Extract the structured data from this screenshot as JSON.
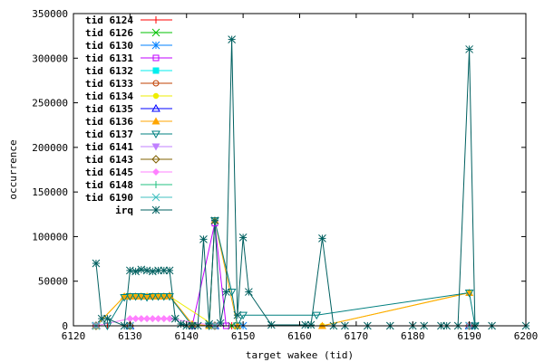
{
  "chart_data": {
    "type": "line",
    "title": "",
    "xlabel": "target wakee (tid)",
    "ylabel": "occurrence",
    "xlim": [
      6120,
      6200
    ],
    "ylim": [
      0,
      350000
    ],
    "x_ticks": [
      "6120",
      "6130",
      "6140",
      "6150",
      "6160",
      "6170",
      "6180",
      "6190",
      "6200"
    ],
    "y_ticks": [
      "0",
      "50000",
      "100000",
      "150000",
      "200000",
      "250000",
      "300000",
      "350000"
    ],
    "grid": false,
    "legend_position": "top-left",
    "series": [
      {
        "name": "tid 6124",
        "color": "#ff0000",
        "marker": "plus",
        "x": [
          6124,
          6126,
          6130,
          6141,
          6145,
          6148,
          6190
        ],
        "y": [
          0,
          0,
          0,
          0,
          0,
          0,
          0
        ]
      },
      {
        "name": "tid 6126",
        "color": "#00c000",
        "marker": "cross",
        "x": [
          6124,
          6130,
          6148,
          6190
        ],
        "y": [
          0,
          0,
          0,
          0
        ]
      },
      {
        "name": "tid 6130",
        "color": "#0080ff",
        "marker": "star",
        "x": [
          6124,
          6130,
          6145,
          6150,
          6190
        ],
        "y": [
          0,
          0,
          0,
          0,
          0
        ]
      },
      {
        "name": "tid 6131",
        "color": "#c000ff",
        "marker": "square-open",
        "x": [
          6124,
          6130,
          6141,
          6145,
          6147,
          6190
        ],
        "y": [
          0,
          0,
          0,
          115000,
          0,
          0
        ]
      },
      {
        "name": "tid 6132",
        "color": "#00eeee",
        "marker": "square-filled",
        "x": [
          6124,
          6130,
          6145,
          6190
        ],
        "y": [
          0,
          0,
          0,
          0
        ]
      },
      {
        "name": "tid 6133",
        "color": "#c04000",
        "marker": "circle-open",
        "x": [
          6124,
          6130,
          6145,
          6190
        ],
        "y": [
          0,
          0,
          0,
          0
        ]
      },
      {
        "name": "tid 6134",
        "color": "#eeee00",
        "marker": "circle-filled",
        "x": [
          6124,
          6129,
          6130,
          6131,
          6132,
          6133,
          6134,
          6135,
          6136,
          6137,
          6145,
          6164,
          6190
        ],
        "y": [
          0,
          33000,
          33000,
          33000,
          33000,
          33000,
          33000,
          33000,
          33000,
          33000,
          0,
          0,
          37000
        ]
      },
      {
        "name": "tid 6135",
        "color": "#0000ff",
        "marker": "triangle-up-open",
        "x": [
          6124,
          6130,
          6145,
          6190
        ],
        "y": [
          0,
          0,
          0,
          0
        ]
      },
      {
        "name": "tid 6136",
        "color": "#ffa500",
        "marker": "triangle-up-filled",
        "x": [
          6124,
          6129,
          6130,
          6131,
          6132,
          6133,
          6134,
          6135,
          6136,
          6137,
          6141,
          6144,
          6145,
          6149,
          6164,
          6190
        ],
        "y": [
          0,
          33000,
          33000,
          33000,
          33000,
          33000,
          33000,
          33000,
          33000,
          34000,
          2000,
          0,
          118000,
          0,
          0,
          37000
        ]
      },
      {
        "name": "tid 6137",
        "color": "#008080",
        "marker": "triangle-down-open",
        "x": [
          6124,
          6126,
          6129,
          6130,
          6131,
          6132,
          6133,
          6134,
          6135,
          6136,
          6137,
          6141,
          6144,
          6145,
          6148,
          6149,
          6150,
          6163,
          6190,
          6191
        ],
        "y": [
          0,
          0,
          32000,
          33000,
          33000,
          33000,
          32000,
          33000,
          33000,
          33000,
          33000,
          0,
          0,
          118000,
          38000,
          0,
          12000,
          12000,
          37000,
          0
        ]
      },
      {
        "name": "tid 6141",
        "color": "#c080ff",
        "marker": "triangle-down-filled",
        "x": [
          6124,
          6130,
          6145,
          6190
        ],
        "y": [
          0,
          0,
          0,
          0
        ]
      },
      {
        "name": "tid 6143",
        "color": "#806000",
        "marker": "diamond-open",
        "x": [
          6124,
          6130,
          6145,
          6190
        ],
        "y": [
          0,
          0,
          0,
          0
        ]
      },
      {
        "name": "tid 6145",
        "color": "#ff80ff",
        "marker": "diamond-filled",
        "x": [
          6124,
          6130,
          6131,
          6132,
          6133,
          6134,
          6135,
          6136,
          6137,
          6145,
          6190
        ],
        "y": [
          0,
          8000,
          8000,
          8000,
          8000,
          8000,
          8000,
          8000,
          8000,
          0,
          0
        ]
      },
      {
        "name": "tid 6148",
        "color": "#20c080",
        "marker": "plus",
        "x": [
          6124,
          6130,
          6145,
          6190
        ],
        "y": [
          0,
          0,
          0,
          0
        ]
      },
      {
        "name": "tid 6190",
        "color": "#40c0c0",
        "marker": "cross",
        "x": [
          6124,
          6130,
          6145,
          6190
        ],
        "y": [
          0,
          0,
          0,
          0
        ]
      },
      {
        "name": "irq",
        "color": "#006060",
        "marker": "star",
        "x": [
          6124,
          6125,
          6126,
          6129,
          6130,
          6131,
          6132,
          6133,
          6134,
          6135,
          6136,
          6137,
          6138,
          6139,
          6140,
          6141,
          6142,
          6143,
          6144,
          6145,
          6146,
          6147,
          6148,
          6149,
          6150,
          6151,
          6155,
          6161,
          6162,
          6164,
          6166,
          6168,
          6172,
          6176,
          6180,
          6182,
          6185,
          6186,
          6188,
          6190,
          6191,
          6194,
          6200
        ],
        "y": [
          70000,
          8000,
          8000,
          0,
          62000,
          61000,
          63000,
          62000,
          61000,
          62000,
          62000,
          62000,
          8000,
          2000,
          0,
          0,
          0,
          97000,
          2000,
          118000,
          3000,
          38000,
          321000,
          12000,
          99000,
          38000,
          1000,
          1000,
          1000,
          98000,
          0,
          0,
          0,
          0,
          0,
          0,
          0,
          0,
          0,
          310000,
          0,
          0,
          0
        ]
      }
    ]
  }
}
